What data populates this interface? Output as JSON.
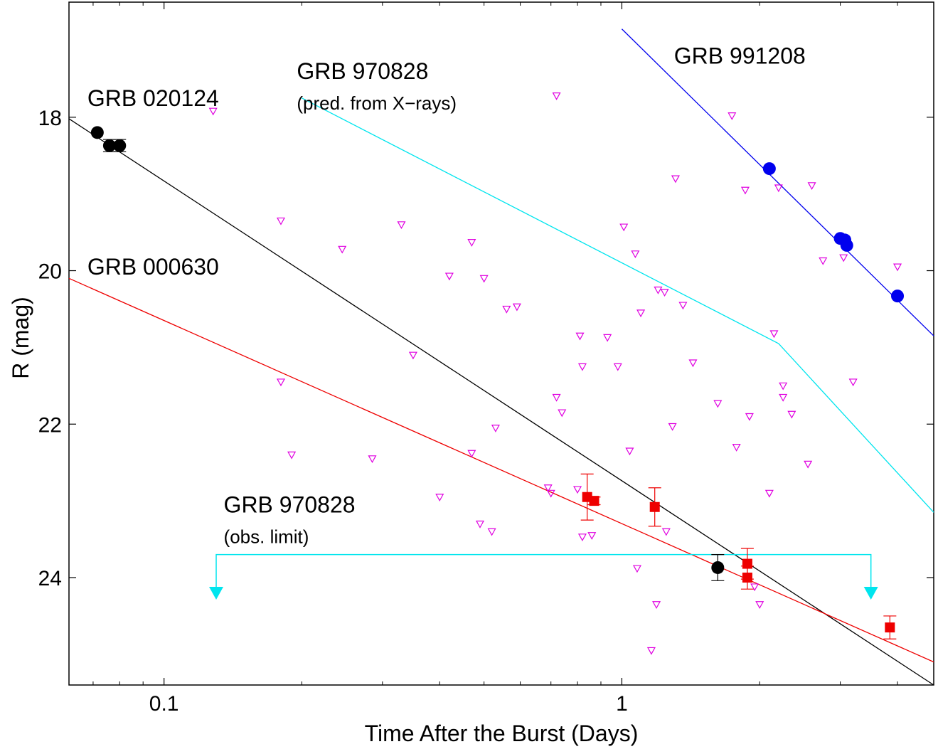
{
  "chart_data": {
    "type": "scatter",
    "xlabel": "Time After the Burst  (Days)",
    "ylabel": "R  (mag)",
    "xscale": "log",
    "xlim": [
      0.062,
      4.8
    ],
    "ylim": [
      25.4,
      16.5
    ],
    "y_inverted": true,
    "grid": false,
    "x_ticks": [
      {
        "value": 0.1,
        "label": "0.1"
      },
      {
        "value": 1,
        "label": "1"
      }
    ],
    "y_ticks": [
      {
        "value": 18,
        "label": "18"
      },
      {
        "value": 20,
        "label": "20"
      },
      {
        "value": 22,
        "label": "22"
      },
      {
        "value": 24,
        "label": "24"
      }
    ],
    "annotations": [
      {
        "id": "grb020124",
        "text": "GRB 020124",
        "x": 0.068,
        "y": 17.75
      },
      {
        "id": "grb970828pred",
        "text": "GRB 970828",
        "x": 0.195,
        "y": 17.4
      },
      {
        "id": "grb970828pred_sub",
        "text": "(pred. from X−rays)",
        "x": 0.195,
        "y": 17.8
      },
      {
        "id": "grb991208",
        "text": "GRB 991208",
        "x": 1.3,
        "y": 17.2
      },
      {
        "id": "grb000630",
        "text": "GRB 000630",
        "x": 0.068,
        "y": 19.95
      },
      {
        "id": "grb970828obs",
        "text": "GRB 970828",
        "x": 0.135,
        "y": 23.05
      },
      {
        "id": "grb970828obs_sub",
        "text": "(obs. limit)",
        "x": 0.135,
        "y": 23.45
      }
    ],
    "series": [
      {
        "id": "grb991208_fit",
        "kind": "line",
        "color": "#0000ee",
        "points": [
          [
            1.0,
            16.85
          ],
          [
            4.8,
            20.85
          ]
        ]
      },
      {
        "id": "grb020124_fit",
        "kind": "line",
        "color": "#000000",
        "points": [
          [
            0.062,
            18.02
          ],
          [
            4.8,
            25.4
          ]
        ]
      },
      {
        "id": "grb000630_fit",
        "kind": "line",
        "color": "#ee0000",
        "points": [
          [
            0.062,
            20.1
          ],
          [
            4.8,
            25.1
          ]
        ]
      },
      {
        "id": "grb970828_pred",
        "kind": "line",
        "color": "#00e5ee",
        "points": [
          [
            0.2,
            17.75
          ],
          [
            2.2,
            20.95
          ],
          [
            4.8,
            23.15
          ]
        ]
      },
      {
        "id": "grb970828_obs_limit",
        "kind": "bracket",
        "color": "#00e5ee",
        "level": 23.7,
        "x_start": 0.13,
        "x_end": 3.5,
        "arrow_to": 24.25
      },
      {
        "id": "grb020124_obs",
        "kind": "points",
        "marker": "circle",
        "color": "#000000",
        "points": [
          {
            "x": 0.0715,
            "y": 18.2,
            "err": 0.0
          },
          {
            "x": 0.076,
            "y": 18.37,
            "err": 0.08
          },
          {
            "x": 0.08,
            "y": 18.37,
            "err": 0.08
          },
          {
            "x": 1.62,
            "y": 23.87,
            "err": 0.17
          }
        ]
      },
      {
        "id": "grb000630_obs",
        "kind": "points",
        "marker": "square",
        "color": "#ee0000",
        "points": [
          {
            "x": 0.84,
            "y": 22.95,
            "err": 0.3
          },
          {
            "x": 0.87,
            "y": 23.0,
            "err": 0.05
          },
          {
            "x": 1.18,
            "y": 23.08,
            "err": 0.25
          },
          {
            "x": 1.88,
            "y": 23.82,
            "err": 0.2
          },
          {
            "x": 1.88,
            "y": 24.0,
            "err": 0.15
          },
          {
            "x": 3.85,
            "y": 24.65,
            "err": 0.15
          }
        ]
      },
      {
        "id": "grb991208_obs",
        "kind": "points",
        "marker": "circle",
        "color": "#0000ee",
        "points": [
          {
            "x": 2.1,
            "y": 18.67,
            "err": 0.0
          },
          {
            "x": 3.0,
            "y": 19.58,
            "err": 0.0
          },
          {
            "x": 3.07,
            "y": 19.6,
            "err": 0.0
          },
          {
            "x": 3.1,
            "y": 19.67,
            "err": 0.0
          },
          {
            "x": 4.0,
            "y": 20.33,
            "err": 0.0
          }
        ]
      },
      {
        "id": "upper_limits",
        "kind": "points",
        "marker": "triangle-down",
        "color": "#e000e0",
        "points": [
          [
            0.128,
            17.92
          ],
          [
            0.18,
            19.35
          ],
          [
            0.18,
            21.45
          ],
          [
            0.19,
            22.4
          ],
          [
            0.245,
            19.72
          ],
          [
            0.285,
            22.45
          ],
          [
            0.33,
            19.4
          ],
          [
            0.35,
            21.1
          ],
          [
            0.4,
            22.95
          ],
          [
            0.42,
            20.07
          ],
          [
            0.47,
            19.63
          ],
          [
            0.47,
            22.38
          ],
          [
            0.49,
            23.3
          ],
          [
            0.5,
            20.1
          ],
          [
            0.52,
            23.4
          ],
          [
            0.53,
            22.05
          ],
          [
            0.56,
            20.5
          ],
          [
            0.59,
            20.47
          ],
          [
            0.69,
            22.83
          ],
          [
            0.72,
            21.65
          ],
          [
            0.74,
            21.85
          ],
          [
            0.72,
            17.72
          ],
          [
            0.7,
            22.9
          ],
          [
            0.8,
            22.85
          ],
          [
            0.81,
            20.85
          ],
          [
            0.82,
            21.25
          ],
          [
            0.82,
            23.47
          ],
          [
            0.86,
            23.45
          ],
          [
            0.93,
            20.87
          ],
          [
            0.98,
            21.25
          ],
          [
            1.01,
            19.43
          ],
          [
            1.04,
            22.35
          ],
          [
            1.07,
            19.78
          ],
          [
            1.1,
            20.55
          ],
          [
            1.16,
            24.95
          ],
          [
            1.08,
            23.88
          ],
          [
            1.19,
            24.35
          ],
          [
            1.2,
            20.25
          ],
          [
            1.24,
            20.28
          ],
          [
            1.25,
            23.4
          ],
          [
            1.29,
            22.03
          ],
          [
            1.31,
            18.8
          ],
          [
            1.36,
            20.45
          ],
          [
            1.43,
            21.2
          ],
          [
            1.62,
            21.73
          ],
          [
            1.74,
            17.98
          ],
          [
            1.78,
            22.3
          ],
          [
            1.86,
            18.95
          ],
          [
            1.9,
            21.9
          ],
          [
            1.95,
            24.12
          ],
          [
            2.0,
            24.35
          ],
          [
            2.1,
            22.9
          ],
          [
            2.15,
            20.82
          ],
          [
            2.2,
            18.92
          ],
          [
            2.25,
            21.65
          ],
          [
            2.25,
            21.5
          ],
          [
            2.35,
            21.87
          ],
          [
            2.55,
            22.52
          ],
          [
            2.6,
            18.89
          ],
          [
            2.75,
            19.87
          ],
          [
            3.05,
            19.83
          ],
          [
            3.2,
            21.45
          ],
          [
            4.0,
            19.95
          ]
        ]
      }
    ]
  }
}
